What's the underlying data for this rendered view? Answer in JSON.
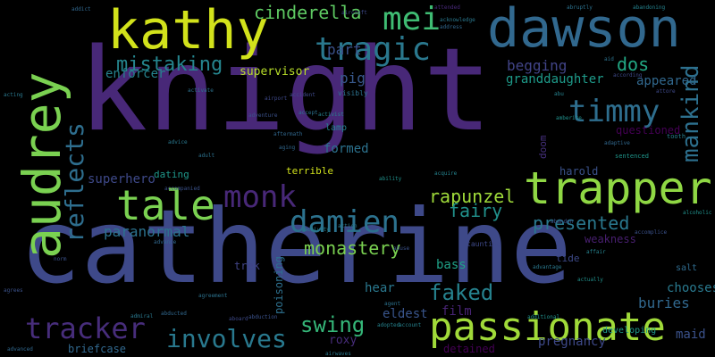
{
  "palette": {
    "background": "#000000",
    "purple_dark": "#440154",
    "purple": "#482878",
    "indigo": "#3e4989",
    "blue": "#31688e",
    "teal": "#26828e",
    "teal_green": "#1f9e89",
    "green": "#35b779",
    "lime": "#6ece58",
    "yellow_green": "#b5de2b",
    "yellow": "#fde725"
  },
  "words": [
    {
      "text": "knight",
      "color": "#482878"
    },
    {
      "text": "catherine",
      "color": "#3e4989"
    },
    {
      "text": "dawson",
      "color": "#31688e"
    },
    {
      "text": "kathy",
      "color": "#d2e21b"
    },
    {
      "text": "audrey",
      "color": "#7ad151"
    },
    {
      "text": "trapper",
      "color": "#8fd744"
    },
    {
      "text": "passionate",
      "color": "#a0da39"
    },
    {
      "text": "tale",
      "color": "#7ad151"
    },
    {
      "text": "tragic",
      "color": "#2a788e"
    },
    {
      "text": "mei",
      "color": "#3fbc73"
    },
    {
      "text": "monk",
      "color": "#482878"
    },
    {
      "text": "damien",
      "color": "#2c728e"
    },
    {
      "text": "timmy",
      "color": "#2e6e8e"
    },
    {
      "text": "tracker",
      "color": "#472d7b"
    },
    {
      "text": "involves",
      "color": "#29798e"
    },
    {
      "text": "reflects",
      "color": "#2e6e8e"
    },
    {
      "text": "mistaking",
      "color": "#25858e"
    },
    {
      "text": "mankind",
      "color": "#2d708e"
    },
    {
      "text": "cinderella",
      "color": "#5ec962"
    },
    {
      "text": "faked",
      "color": "#26828e"
    },
    {
      "text": "swing",
      "color": "#35b779"
    },
    {
      "text": "presented",
      "color": "#2a788e"
    },
    {
      "text": "rapunzel",
      "color": "#9fda3a"
    },
    {
      "text": "monastery",
      "color": "#7ad151"
    },
    {
      "text": "fairy",
      "color": "#21918c"
    },
    {
      "text": "paranormal",
      "color": "#2c728e"
    },
    {
      "text": "dos",
      "color": "#22a884"
    },
    {
      "text": "part",
      "color": "#3b528b"
    },
    {
      "text": "begging",
      "color": "#414487"
    },
    {
      "text": "enforcer",
      "color": "#25838e"
    },
    {
      "text": "granddaughter",
      "color": "#1e9b8a"
    },
    {
      "text": "appeared",
      "color": "#31688e"
    },
    {
      "text": "pig",
      "color": "#38588c"
    },
    {
      "text": "supervisor",
      "color": "#b8de29"
    },
    {
      "text": "superhero",
      "color": "#3e4989"
    },
    {
      "text": "formed",
      "color": "#2c728e"
    },
    {
      "text": "questioned",
      "color": "#440154"
    },
    {
      "text": "buries",
      "color": "#31688e"
    },
    {
      "text": "eldest",
      "color": "#39558c"
    },
    {
      "text": "pregnancy",
      "color": "#3e4989"
    },
    {
      "text": "maid",
      "color": "#3b528b"
    },
    {
      "text": "film",
      "color": "#482475"
    },
    {
      "text": "hear",
      "color": "#2a788e"
    },
    {
      "text": "bass",
      "color": "#1fa187"
    },
    {
      "text": "chooses",
      "color": "#29798e"
    },
    {
      "text": "weakness",
      "color": "#481f70"
    },
    {
      "text": "detained",
      "color": "#440154"
    },
    {
      "text": "roxy",
      "color": "#472c7a"
    },
    {
      "text": "briefcase",
      "color": "#31688e"
    },
    {
      "text": "harold",
      "color": "#3b528b"
    },
    {
      "text": "dating",
      "color": "#1f988b"
    },
    {
      "text": "terrible",
      "color": "#d0e11c"
    },
    {
      "text": "poisoning",
      "color": "#2d708e"
    },
    {
      "text": "trek",
      "color": "#414487"
    },
    {
      "text": "tide",
      "color": "#3e4a89"
    },
    {
      "text": "doom",
      "color": "#46307e"
    },
    {
      "text": "developing",
      "color": "#1f9a8a"
    },
    {
      "text": "salt",
      "color": "#2f6b8e"
    },
    {
      "text": "lamp",
      "color": "#26828e"
    },
    {
      "text": "attended",
      "color": "#482878"
    },
    {
      "text": "aircraft",
      "color": "#3e4989"
    },
    {
      "text": "sentenced",
      "color": "#1f968b"
    },
    {
      "text": "tooth",
      "color": "#277f8e"
    },
    {
      "text": "ability",
      "color": "#21918c"
    },
    {
      "text": "acquire",
      "color": "#25838e"
    },
    {
      "text": "accept",
      "color": "#2c728e"
    },
    {
      "text": "aging",
      "color": "#31688e"
    },
    {
      "text": "adventure",
      "color": "#3b528b"
    },
    {
      "text": "advice",
      "color": "#2a788e"
    },
    {
      "text": "activist",
      "color": "#26828e"
    },
    {
      "text": "accident",
      "color": "#3e4989"
    },
    {
      "text": "activate",
      "color": "#2c728e"
    },
    {
      "text": "actually",
      "color": "#21918c"
    },
    {
      "text": "acting",
      "color": "#2a788e"
    },
    {
      "text": "accompanied",
      "color": "#3b528b"
    },
    {
      "text": "advanced",
      "color": "#31688e"
    },
    {
      "text": "adopted",
      "color": "#25838e"
    },
    {
      "text": "agreement",
      "color": "#2c728e"
    },
    {
      "text": "airport",
      "color": "#3e4989"
    },
    {
      "text": "additional",
      "color": "#21918c"
    },
    {
      "text": "abduction",
      "color": "#3b528b"
    },
    {
      "text": "admiral",
      "color": "#2a788e"
    },
    {
      "text": "abducted",
      "color": "#31688e"
    },
    {
      "text": "aboard",
      "color": "#3e4989"
    },
    {
      "text": "agent",
      "color": "#2c728e"
    },
    {
      "text": "account",
      "color": "#26828e"
    },
    {
      "text": "abuse",
      "color": "#3b528b"
    },
    {
      "text": "aftermath",
      "color": "#31688e"
    },
    {
      "text": "action",
      "color": "#2a788e"
    },
    {
      "text": "activity",
      "color": "#25838e"
    },
    {
      "text": "visibly",
      "color": "#2c728e"
    },
    {
      "text": "taunting",
      "color": "#3e4989"
    },
    {
      "text": "advance",
      "color": "#31688e"
    },
    {
      "text": "norm",
      "color": "#3b528b"
    },
    {
      "text": "advantage",
      "color": "#2a788e"
    },
    {
      "text": "affair",
      "color": "#26828e"
    },
    {
      "text": "aid",
      "color": "#2c728e"
    },
    {
      "text": "abandon",
      "color": "#3b528b"
    },
    {
      "text": "alcoholic",
      "color": "#21918c"
    },
    {
      "text": "address",
      "color": "#31688e"
    },
    {
      "text": "acknowledge",
      "color": "#2a788e"
    },
    {
      "text": "according",
      "color": "#3e4989"
    },
    {
      "text": "abruptly",
      "color": "#2c728e"
    },
    {
      "text": "abandoning",
      "color": "#25838e"
    },
    {
      "text": "accomplice",
      "color": "#3b528b"
    },
    {
      "text": "adaptive",
      "color": "#31688e"
    },
    {
      "text": "airwaves",
      "color": "#2a788e"
    },
    {
      "text": "abu",
      "color": "#26828e"
    },
    {
      "text": "attore",
      "color": "#3e4989"
    },
    {
      "text": "adult",
      "color": "#2c728e"
    },
    {
      "text": "addict",
      "color": "#31688e"
    },
    {
      "text": "amberite",
      "color": "#21918c"
    },
    {
      "text": "agrees",
      "color": "#3b528b"
    }
  ]
}
